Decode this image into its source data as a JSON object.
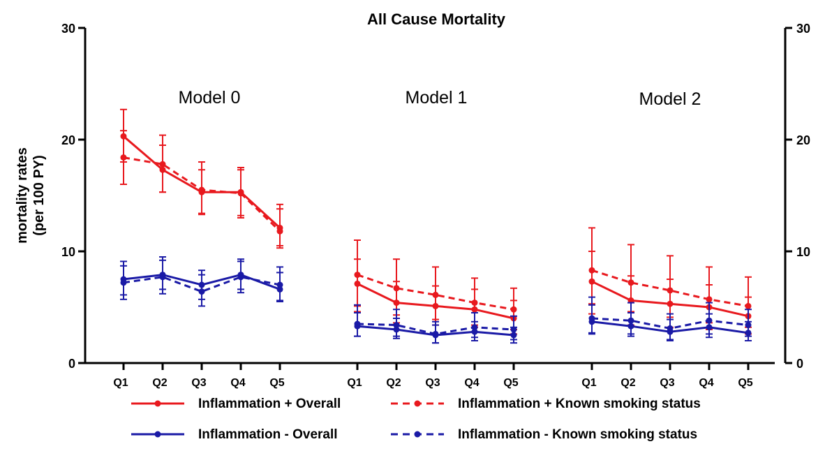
{
  "chart_data": {
    "type": "line",
    "title": "All Cause Mortality",
    "ylabel": "mortality rates (per 100 PY)",
    "ylabel_lines": [
      "mortality rates",
      "(per 100 PY)"
    ],
    "ylim": [
      0,
      30
    ],
    "yticks": [
      0,
      10,
      20,
      30
    ],
    "categories": [
      "Q1",
      "Q2",
      "Q3",
      "Q4",
      "Q5"
    ],
    "secondary_axis": true,
    "legend_position": "bottom",
    "grid": false,
    "panels": [
      {
        "name": "Model 0",
        "series": [
          {
            "name": "Inflammation + Overall",
            "color": "#e8191e",
            "style": "solid",
            "values": [
              20.3,
              17.3,
              15.3,
              15.3,
              12.1
            ],
            "err_low": [
              18.0,
              15.3,
              13.4,
              13.2,
              10.5
            ],
            "err_high": [
              22.7,
              19.5,
              17.3,
              17.3,
              13.8
            ]
          },
          {
            "name": "Inflammation + Known smoking status",
            "color": "#e8191e",
            "style": "dashed",
            "values": [
              18.4,
              17.8,
              15.5,
              15.2,
              11.8
            ],
            "err_low": [
              16.0,
              15.3,
              13.3,
              13.0,
              10.3
            ],
            "err_high": [
              20.8,
              20.4,
              18.0,
              17.5,
              14.2
            ]
          },
          {
            "name": "Inflammation - Overall",
            "color": "#1a1aa6",
            "style": "solid",
            "values": [
              7.5,
              7.9,
              7.0,
              7.9,
              6.6
            ],
            "err_low": [
              6.1,
              6.6,
              5.7,
              6.6,
              5.5
            ],
            "err_high": [
              9.1,
              9.5,
              8.3,
              9.3,
              8.1
            ]
          },
          {
            "name": "Inflammation - Known smoking status",
            "color": "#1a1aa6",
            "style": "dashed",
            "values": [
              7.2,
              7.7,
              6.4,
              7.7,
              7.0
            ],
            "err_low": [
              5.7,
              6.2,
              5.1,
              6.3,
              5.6
            ],
            "err_high": [
              8.7,
              9.2,
              7.9,
              9.1,
              8.6
            ]
          }
        ]
      },
      {
        "name": "Model 1",
        "series": [
          {
            "name": "Inflammation + Overall",
            "color": "#e8191e",
            "style": "solid",
            "values": [
              7.1,
              5.4,
              5.1,
              4.8,
              4.0
            ],
            "err_low": [
              4.6,
              3.6,
              3.4,
              3.2,
              2.6
            ],
            "err_high": [
              9.3,
              7.3,
              6.9,
              6.6,
              5.6
            ]
          },
          {
            "name": "Inflammation + Known smoking status",
            "color": "#e8191e",
            "style": "dashed",
            "values": [
              7.9,
              6.7,
              6.1,
              5.4,
              4.8
            ],
            "err_low": [
              5.1,
              4.3,
              3.9,
              3.4,
              3.0
            ],
            "err_high": [
              11.0,
              9.3,
              8.6,
              7.6,
              6.7
            ]
          },
          {
            "name": "Inflammation - Overall",
            "color": "#1a1aa6",
            "style": "solid",
            "values": [
              3.3,
              3.0,
              2.5,
              2.8,
              2.5
            ],
            "err_low": [
              2.4,
              2.2,
              1.8,
              2.0,
              1.8
            ],
            "err_high": [
              4.5,
              4.0,
              3.4,
              3.7,
              3.2
            ]
          },
          {
            "name": "Inflammation - Known smoking status",
            "color": "#1a1aa6",
            "style": "dashed",
            "values": [
              3.5,
              3.4,
              2.6,
              3.2,
              3.0
            ],
            "err_low": [
              2.4,
              2.4,
              1.8,
              2.3,
              2.1
            ],
            "err_high": [
              5.2,
              4.8,
              3.7,
              4.5,
              4.2
            ]
          }
        ]
      },
      {
        "name": "Model 2",
        "series": [
          {
            "name": "Inflammation + Overall",
            "color": "#e8191e",
            "style": "solid",
            "values": [
              7.3,
              5.6,
              5.3,
              5.0,
              4.2
            ],
            "err_low": [
              4.4,
              3.4,
              3.2,
              3.0,
              2.6
            ],
            "err_high": [
              10.0,
              7.8,
              7.5,
              7.0,
              5.9
            ]
          },
          {
            "name": "Inflammation + Known smoking status",
            "color": "#e8191e",
            "style": "dashed",
            "values": [
              8.3,
              7.2,
              6.5,
              5.7,
              5.1
            ],
            "err_low": [
              5.3,
              4.6,
              4.1,
              3.6,
              3.2
            ],
            "err_high": [
              12.1,
              10.6,
              9.6,
              8.6,
              7.7
            ]
          },
          {
            "name": "Inflammation - Overall",
            "color": "#1a1aa6",
            "style": "solid",
            "values": [
              3.7,
              3.3,
              2.8,
              3.2,
              2.7
            ],
            "err_low": [
              2.6,
              2.4,
              2.0,
              2.3,
              2.0
            ],
            "err_high": [
              5.2,
              4.5,
              3.9,
              4.4,
              3.7
            ]
          },
          {
            "name": "Inflammation - Known smoking status",
            "color": "#1a1aa6",
            "style": "dashed",
            "values": [
              4.0,
              3.8,
              3.1,
              3.8,
              3.4
            ],
            "err_low": [
              2.7,
              2.6,
              2.1,
              2.6,
              2.4
            ],
            "err_high": [
              5.9,
              5.4,
              4.4,
              5.4,
              4.8
            ]
          }
        ]
      }
    ],
    "legend": [
      {
        "name": "Inflammation + Overall",
        "color": "#e8191e",
        "style": "solid"
      },
      {
        "name": "Inflammation + Known smoking status",
        "color": "#e8191e",
        "style": "dashed"
      },
      {
        "name": "Inflammation - Overall",
        "color": "#1a1aa6",
        "style": "solid"
      },
      {
        "name": "Inflammation -  Known smoking status",
        "color": "#1a1aa6",
        "style": "dashed"
      }
    ]
  }
}
